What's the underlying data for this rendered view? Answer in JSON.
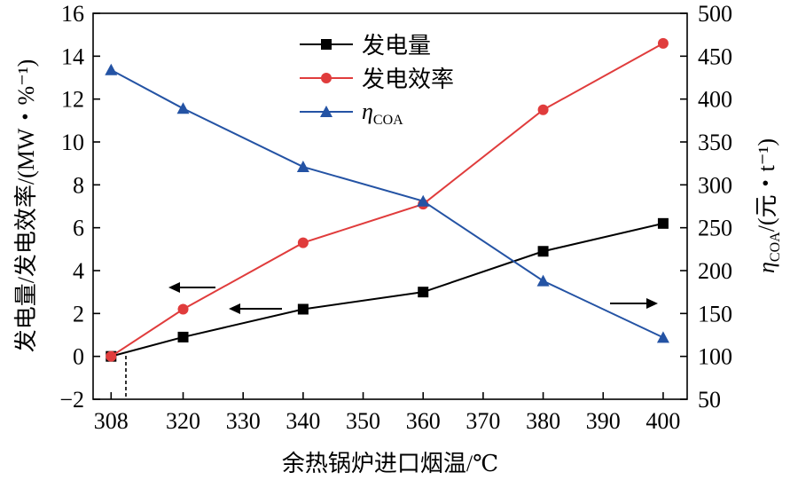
{
  "chart_data": {
    "type": "line",
    "xlabel": "余热锅炉进口烟温/℃",
    "ylabel_left": "发电量/发电效率/(MW・%⁻¹)",
    "ylabel_right_main": "η",
    "ylabel_right_sub": "COA",
    "ylabel_right_rest": "/(元・t⁻¹)",
    "x_ticks": [
      308,
      320,
      330,
      340,
      350,
      360,
      370,
      380,
      390,
      400
    ],
    "xlim": [
      305,
      404
    ],
    "ylim_left": [
      -2,
      16
    ],
    "yticks_left": [
      -2,
      0,
      2,
      4,
      6,
      8,
      10,
      12,
      14,
      16
    ],
    "ylim_right": [
      50,
      500
    ],
    "yticks_right": [
      50,
      100,
      150,
      200,
      250,
      300,
      350,
      400,
      450,
      500
    ],
    "legend_position": "top-center",
    "series": [
      {
        "name": "发电量",
        "axis": "left",
        "marker": "square",
        "color": "#000000",
        "x": [
          308,
          320,
          340,
          360,
          380,
          400
        ],
        "y": [
          0,
          0.9,
          2.2,
          3.0,
          4.9,
          6.2
        ]
      },
      {
        "name": "发电效率",
        "axis": "left",
        "marker": "circle",
        "color": "#e03c3c",
        "x": [
          308,
          320,
          340,
          360,
          380,
          400
        ],
        "y": [
          0,
          2.2,
          5.3,
          7.1,
          11.5,
          14.6
        ]
      },
      {
        "name": "η",
        "name_sub": "COA",
        "axis": "right",
        "marker": "triangle",
        "color": "#2453a4",
        "x": [
          308,
          320,
          340,
          360,
          380,
          400
        ],
        "y": [
          434,
          389,
          321,
          281,
          188,
          122
        ]
      }
    ]
  }
}
